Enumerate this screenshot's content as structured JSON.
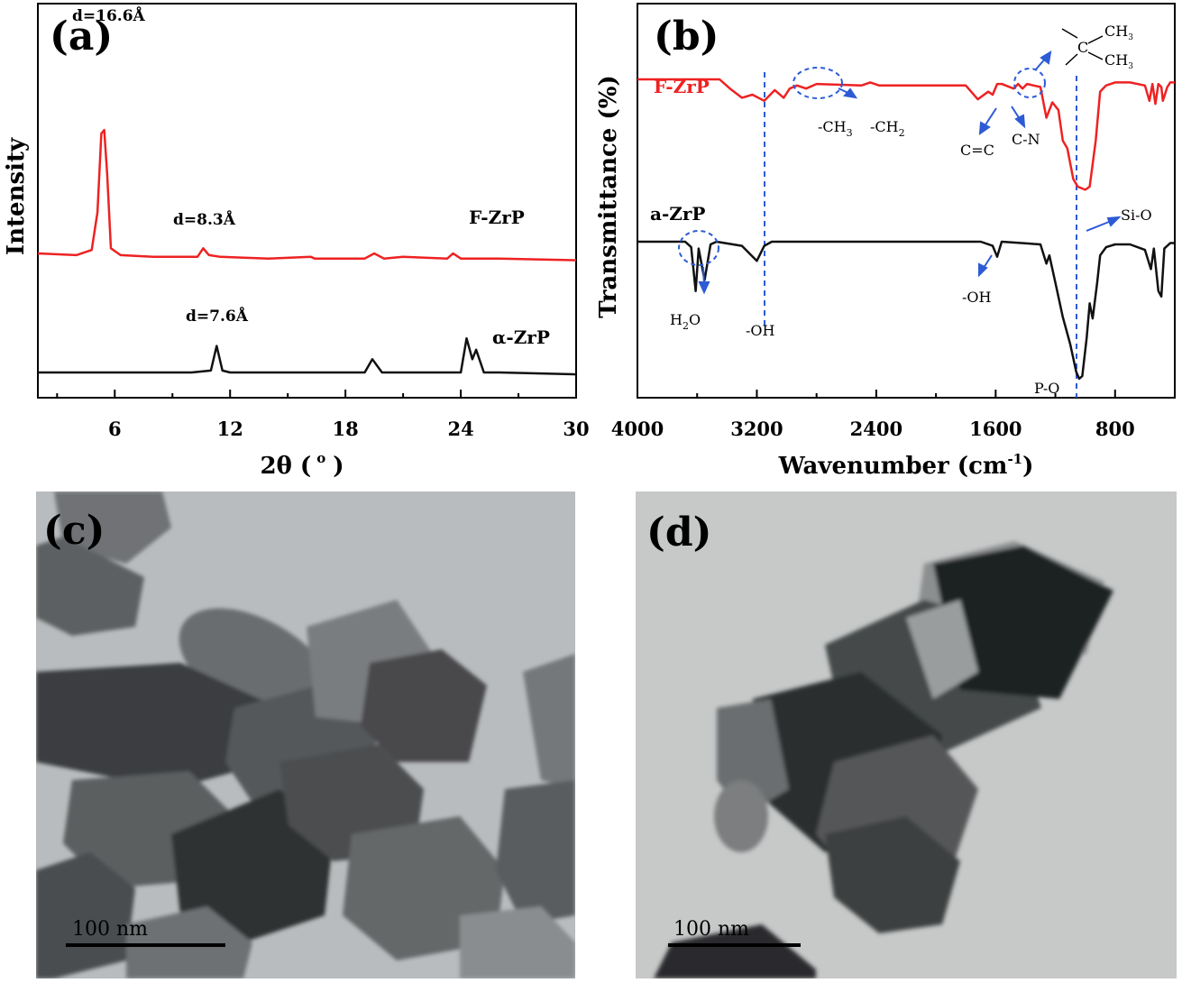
{
  "chart_data": [
    {
      "panel": "a",
      "type": "line",
      "panel_label": "(a)",
      "xlabel": "2θ ( o )",
      "xlabel_main": "2θ (",
      "xlabel_sup": "o",
      "xlabel_close": ")",
      "ylabel": "Intensity",
      "xlim": [
        2,
        30
      ],
      "xticks": [
        6,
        12,
        18,
        24,
        30
      ],
      "grid": false,
      "series": [
        {
          "name": "F-ZrP",
          "color": "#ee2222",
          "x": [
            2,
            4,
            4.8,
            5.1,
            5.3,
            5.45,
            5.6,
            5.8,
            6.3,
            8,
            10.3,
            10.6,
            10.9,
            11.5,
            14,
            16.2,
            16.4,
            19,
            19.5,
            20,
            21,
            23.3,
            23.6,
            24,
            26,
            30
          ],
          "y": [
            0.28,
            0.27,
            0.3,
            0.52,
            0.98,
            1.0,
            0.75,
            0.31,
            0.27,
            0.26,
            0.26,
            0.31,
            0.27,
            0.26,
            0.25,
            0.26,
            0.25,
            0.25,
            0.28,
            0.25,
            0.26,
            0.25,
            0.28,
            0.25,
            0.25,
            0.24
          ]
        },
        {
          "name": "α-ZrP",
          "color": "#111111",
          "x": [
            2,
            6,
            10,
            11,
            11.3,
            11.6,
            12,
            15,
            19,
            19.4,
            19.9,
            21,
            24,
            24.3,
            24.6,
            24.8,
            25.2,
            26,
            30
          ],
          "y": [
            0.0,
            0.0,
            0.0,
            0.01,
            0.14,
            0.01,
            0.0,
            0.0,
            0.0,
            0.07,
            0.0,
            0.0,
            0.0,
            0.18,
            0.07,
            0.12,
            0.0,
            0.0,
            -0.01
          ]
        }
      ],
      "annotations": [
        {
          "text": "d=16.6Å",
          "x": 5.4
        },
        {
          "text": "d=8.3Å",
          "x": 10.6
        },
        {
          "text": "d=7.6Å",
          "x": 11.3
        }
      ]
    },
    {
      "panel": "b",
      "type": "line",
      "panel_label": "(b)",
      "xlabel": "Wavenumber (cm-1)",
      "xlabel_main": "Wavenumber (cm",
      "xlabel_sup": "-1",
      "xlabel_close": ")",
      "ylabel": "Transmittance (%)",
      "xlim": [
        4000,
        400
      ],
      "xticks": [
        4000,
        3200,
        2400,
        1600,
        800
      ],
      "grid": false,
      "series": [
        {
          "name": "F-ZrP",
          "color": "#ee2222",
          "x": [
            4000,
            3450,
            3380,
            3300,
            3230,
            3150,
            3080,
            3020,
            2980,
            2930,
            2870,
            2800,
            2500,
            2440,
            2380,
            1800,
            1720,
            1650,
            1620,
            1590,
            1560,
            1480,
            1450,
            1420,
            1390,
            1300,
            1260,
            1220,
            1180,
            1150,
            1120,
            1100,
            1080,
            1050,
            1000,
            970,
            930,
            900,
            860,
            800,
            700,
            600,
            570,
            550,
            530,
            510,
            490,
            480,
            450,
            430,
            400
          ],
          "y": [
            1.0,
            1.0,
            0.94,
            0.88,
            0.9,
            0.86,
            0.93,
            0.88,
            0.94,
            0.96,
            0.94,
            0.97,
            0.96,
            0.98,
            0.96,
            0.96,
            0.87,
            0.92,
            0.9,
            0.97,
            0.97,
            0.94,
            0.97,
            0.94,
            0.97,
            0.95,
            0.75,
            0.85,
            0.8,
            0.6,
            0.55,
            0.45,
            0.35,
            0.3,
            0.28,
            0.3,
            0.6,
            0.92,
            0.96,
            0.98,
            0.98,
            0.96,
            0.86,
            0.97,
            0.84,
            0.97,
            0.95,
            0.86,
            0.95,
            0.98,
            0.98
          ]
        },
        {
          "name": "a-ZrP",
          "color": "#111111",
          "x": [
            4000,
            3680,
            3640,
            3610,
            3590,
            3550,
            3510,
            3470,
            3300,
            3200,
            3150,
            3100,
            1700,
            1620,
            1590,
            1560,
            1300,
            1260,
            1240,
            1200,
            1150,
            1100,
            1060,
            1040,
            1020,
            990,
            970,
            950,
            920,
            900,
            860,
            800,
            700,
            600,
            560,
            540,
            510,
            490,
            470,
            430,
            400
          ],
          "y": [
            1.0,
            1.0,
            0.96,
            0.64,
            0.95,
            0.72,
            0.98,
            1.0,
            0.97,
            0.86,
            0.97,
            1.0,
            1.0,
            0.97,
            0.89,
            1.0,
            0.98,
            0.84,
            0.9,
            0.7,
            0.45,
            0.25,
            0.05,
            0.0,
            0.02,
            0.3,
            0.55,
            0.44,
            0.7,
            0.9,
            0.96,
            0.98,
            0.98,
            0.94,
            0.8,
            0.95,
            0.64,
            0.6,
            0.95,
            0.99,
            0.99
          ]
        }
      ],
      "annotations": [
        {
          "text": "-CH",
          "sub": "3"
        },
        {
          "text": "-CH",
          "sub": "2"
        },
        {
          "text": "C=C"
        },
        {
          "text": "C-N"
        },
        {
          "text": "CH",
          "sub": "3"
        },
        {
          "text": "C"
        },
        {
          "text": "Si-O"
        },
        {
          "text": "-OH"
        },
        {
          "text": "-OH"
        },
        {
          "text": "H",
          "sub": "2",
          "tail": "O"
        },
        {
          "text": "P-O"
        }
      ]
    }
  ],
  "images": [
    {
      "panel_label": "(c)",
      "scale_bar": "100 nm"
    },
    {
      "panel_label": "(d)",
      "scale_bar": "100 nm"
    }
  ],
  "colors": {
    "f_zrp": "#ee2222",
    "a_zrp": "#111111",
    "annotation_blue": "#2d5bd6",
    "tem_bg_c": "#b9bcbe",
    "tem_bg_d": "#c7c9c9"
  }
}
